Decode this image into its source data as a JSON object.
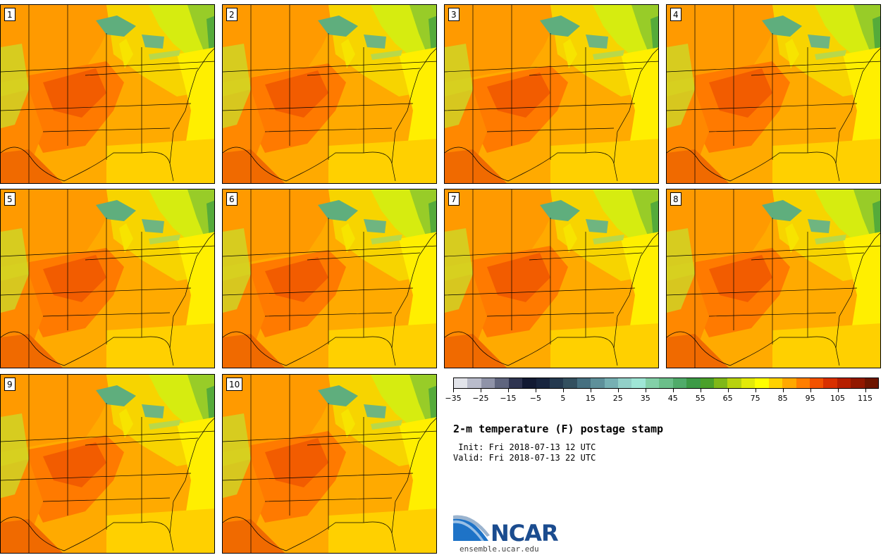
{
  "panels": [
    {
      "label": "1"
    },
    {
      "label": "2"
    },
    {
      "label": "3"
    },
    {
      "label": "4"
    },
    {
      "label": "5"
    },
    {
      "label": "6"
    },
    {
      "label": "7"
    },
    {
      "label": "8"
    },
    {
      "label": "9"
    },
    {
      "label": "10"
    }
  ],
  "colorbar": {
    "colors": [
      "#e2e4ea",
      "#b9bccb",
      "#8f93a8",
      "#5f657e",
      "#2e3450",
      "#121a33",
      "#18253f",
      "#24394f",
      "#33505f",
      "#467080",
      "#5e909a",
      "#76b0b3",
      "#92d0c8",
      "#9fe6d6",
      "#83d0a8",
      "#6bbf8a",
      "#50ab6a",
      "#3c9a46",
      "#4aa02a",
      "#7fb818",
      "#b8d20e",
      "#e3ea08",
      "#ffff00",
      "#ffd200",
      "#ffa800",
      "#ff7e00",
      "#f25200",
      "#d93000",
      "#b61f00",
      "#921800",
      "#6d1500"
    ],
    "min": -35,
    "max": 120,
    "ticks": [
      "−35",
      "−25",
      "−15",
      "−5",
      "5",
      "15",
      "25",
      "35",
      "45",
      "55",
      "65",
      "75",
      "85",
      "95",
      "105",
      "115"
    ],
    "tick_values": [
      -35,
      -25,
      -15,
      -5,
      5,
      15,
      25,
      35,
      45,
      55,
      65,
      75,
      85,
      95,
      105,
      115
    ]
  },
  "title": "2-m temperature (F) postage stamp",
  "init": " Init: Fri 2018-07-13 12 UTC",
  "valid": "Valid: Fri 2018-07-13 22 UTC",
  "logo": {
    "text": "NCAR",
    "url": "ensemble.ucar.edu"
  }
}
